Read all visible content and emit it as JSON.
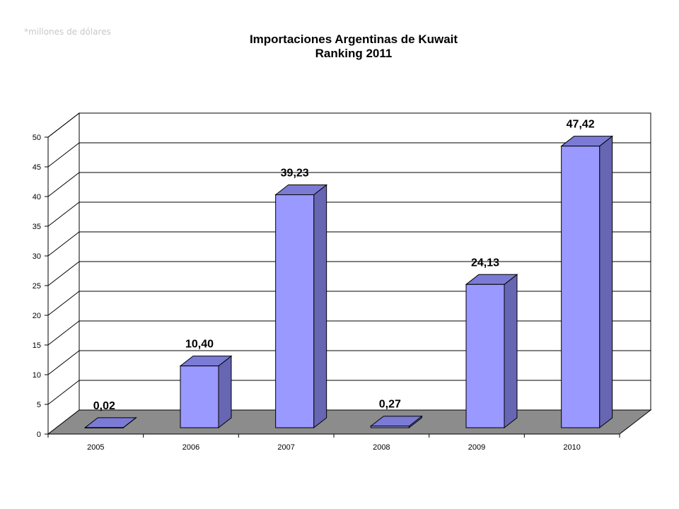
{
  "unit_note": "*millones de dólares",
  "chart_data": {
    "type": "bar",
    "title": "Importaciones Argentinas  de Kuwait",
    "subtitle": "Ranking 2011",
    "xlabel": "",
    "ylabel": "",
    "categories": [
      "2005",
      "2006",
      "2007",
      "2008",
      "2009",
      "2010"
    ],
    "values": [
      0.02,
      10.4,
      39.23,
      0.27,
      24.13,
      47.42
    ],
    "data_labels": [
      "0,02",
      "10,40",
      "39,23",
      "0,27",
      "24,13",
      "47,42"
    ],
    "ylim": [
      0,
      50
    ],
    "yticks": [
      0,
      5,
      10,
      15,
      20,
      25,
      30,
      35,
      40,
      45,
      50
    ],
    "grid": true,
    "legend": "none",
    "colors": {
      "bar_front": "#9999ff",
      "bar_side": "#6666b3",
      "bar_top": "#7b7bd6",
      "floor": "#8c8c8c"
    }
  }
}
